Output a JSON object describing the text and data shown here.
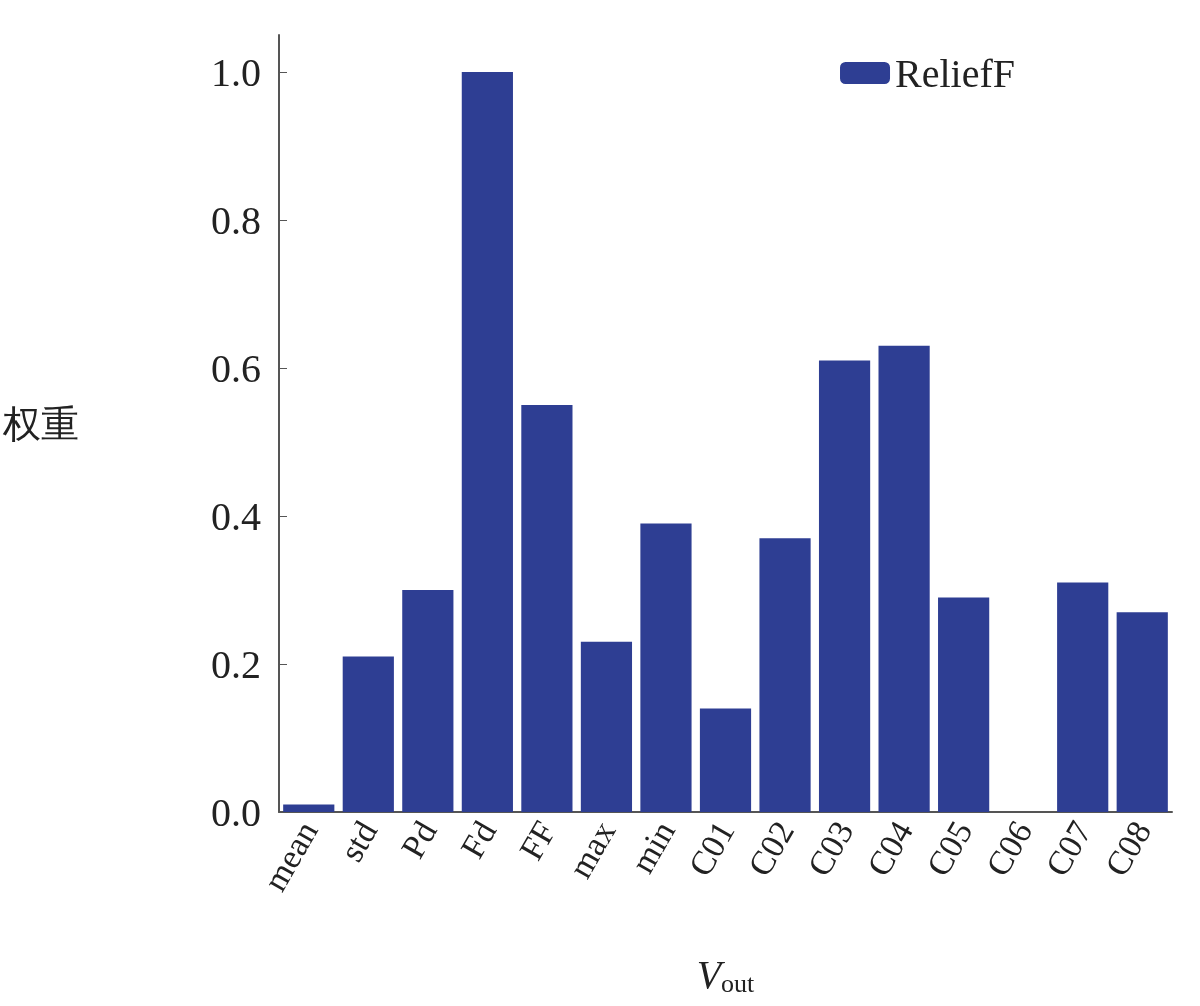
{
  "chart_data": {
    "type": "bar",
    "xlabel": "V$_{out}$",
    "ylabel": "权重",
    "categories": [
      "mean",
      "std",
      "Pd",
      "Fd",
      "FF",
      "max",
      "min",
      "C01",
      "C02",
      "C03",
      "C04",
      "C05",
      "C06",
      "C07",
      "C08"
    ],
    "series": [
      {
        "name": "ReliefF",
        "color": "#2e3e93",
        "values": [
          0.01,
          0.21,
          0.3,
          1.0,
          0.55,
          0.23,
          0.39,
          0.14,
          0.37,
          0.61,
          0.63,
          0.29,
          0,
          0.31,
          0.27
        ]
      }
    ],
    "ylim": [
      0,
      1.05
    ],
    "yticks": [
      {
        "value": 0,
        "label": "0.0"
      },
      {
        "value": 0.2,
        "label": "0.2"
      },
      {
        "value": 0.4,
        "label": "0.4"
      },
      {
        "value": 0.6,
        "label": "0.6"
      },
      {
        "value": 0.8,
        "label": "0.8"
      },
      {
        "value": 1.0,
        "label": "1.0"
      }
    ],
    "grid": false,
    "legend": "top right"
  }
}
